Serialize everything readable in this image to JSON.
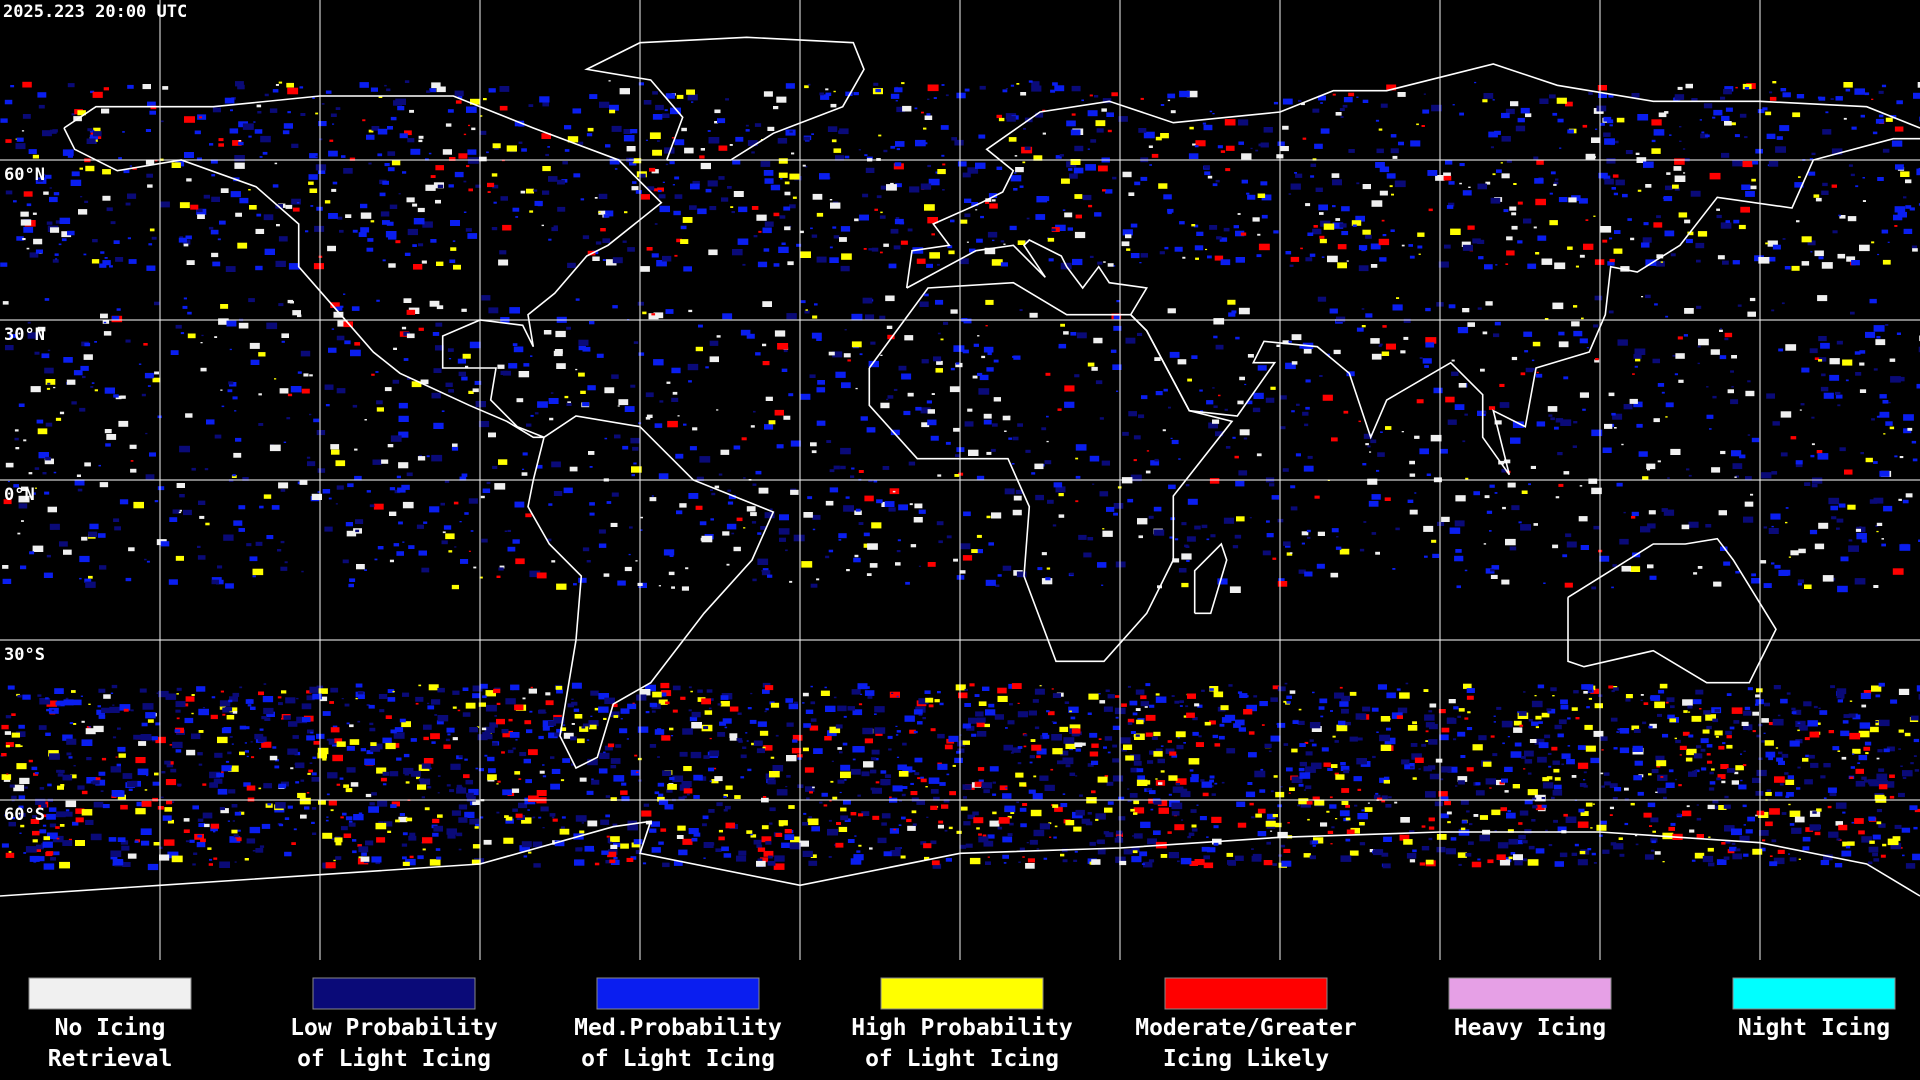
{
  "timestamp": "2025.223 20:00 UTC",
  "latitude_labels": [
    "60°N",
    "30°N",
    "0°N",
    "30°S",
    "60°S"
  ],
  "legend": [
    {
      "color": "#f0f0f0",
      "label": [
        "No Icing",
        "Retrieval"
      ]
    },
    {
      "color": "#0a0a78",
      "label": [
        "Low Probability",
        "of Light Icing"
      ]
    },
    {
      "color": "#0a1ef0",
      "label": [
        "Med.Probability",
        "of Light Icing"
      ]
    },
    {
      "color": "#ffff00",
      "label": [
        "High Probability",
        "of Light Icing"
      ]
    },
    {
      "color": "#ff0000",
      "label": [
        "Moderate/Greater",
        "Icing Likely"
      ]
    },
    {
      "color": "#e6a0e6",
      "label": [
        "Heavy Icing"
      ]
    },
    {
      "color": "#00ffff",
      "label": [
        "Night Icing"
      ]
    }
  ]
}
